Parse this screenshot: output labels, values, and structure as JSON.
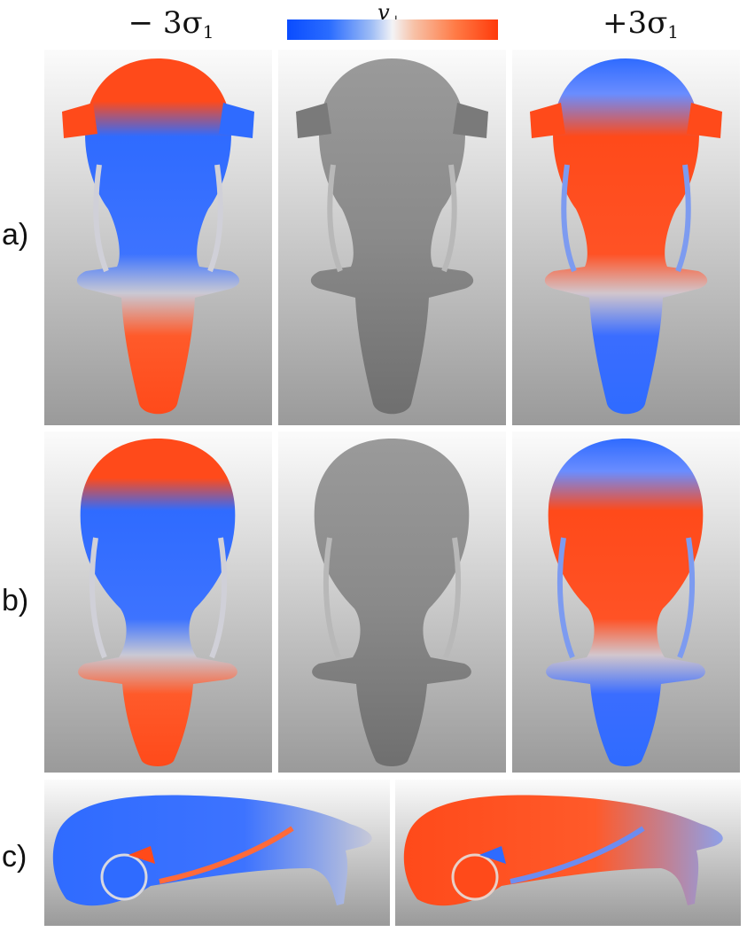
{
  "headers": {
    "left": "− 3σ",
    "left_sub": "1",
    "right": "+3σ",
    "right_sub": "1"
  },
  "colorbar": {
    "title": "v",
    "title_sub": "⊥",
    "colors": {
      "negative": "#0a4cff",
      "neutral": "#f3f3f6",
      "positive": "#ff3a0a"
    }
  },
  "rows": {
    "a": "a)",
    "b": "b)",
    "c": "c)"
  },
  "colors": {
    "blue": "#2f6bff",
    "red": "#ff4a1a",
    "gray_bone": "#8d8d8d"
  }
}
